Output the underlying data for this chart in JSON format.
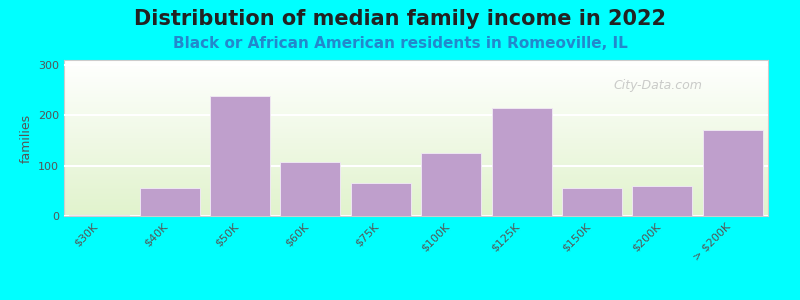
{
  "title": "Distribution of median family income in 2022",
  "subtitle": "Black or African American residents in Romeoville, IL",
  "categories": [
    "$30K",
    "$40K",
    "$50K",
    "$60K",
    "$75K",
    "$100K",
    "$125K",
    "$150K",
    "$200K",
    "> $200K"
  ],
  "values": [
    2,
    55,
    238,
    108,
    65,
    125,
    215,
    55,
    60,
    170
  ],
  "bar_color": "#bf9fcc",
  "bar_edge_color": "#d0b8dd",
  "ylabel": "families",
  "ylim": [
    0,
    310
  ],
  "yticks": [
    0,
    100,
    200,
    300
  ],
  "background_top": "#e8f5d0",
  "background_bottom": "#f8f8f0",
  "outer_bg": "#00ffff",
  "title_fontsize": 15,
  "subtitle_fontsize": 11,
  "watermark": "City-Data.com"
}
